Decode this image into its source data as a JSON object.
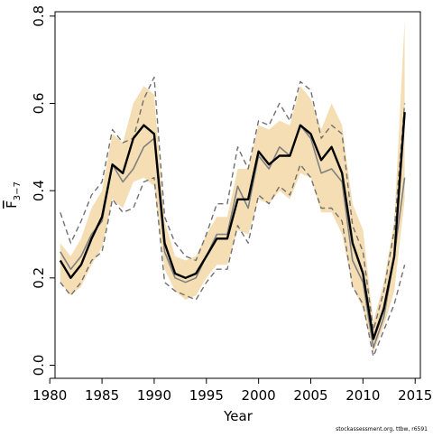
{
  "chart_data": {
    "type": "line",
    "title": "",
    "xlabel": "Year",
    "ylabel": {
      "main": "F",
      "sub": "3−7"
    },
    "xlim": [
      1980.5,
      2015.5
    ],
    "ylim": [
      -0.03,
      0.81
    ],
    "xticks": [
      1980,
      1985,
      1990,
      1995,
      2000,
      2005,
      2010,
      2015
    ],
    "yticks": [
      0.0,
      0.2,
      0.4,
      0.6,
      0.8
    ],
    "ytick_labels": [
      "0.0",
      "0.2",
      "0.4",
      "0.6",
      "0.8"
    ],
    "grid": false,
    "legend": "none",
    "colors": {
      "band": "#f5deb3",
      "current": "#000000",
      "previous": "#808080",
      "previous_ci": "#707070"
    },
    "x": [
      1981,
      1982,
      1983,
      1984,
      1985,
      1986,
      1987,
      1988,
      1989,
      1990,
      1991,
      1992,
      1993,
      1994,
      1995,
      1996,
      1997,
      1998,
      1999,
      2000,
      2001,
      2002,
      2003,
      2004,
      2005,
      2006,
      2007,
      2008,
      2009,
      2010,
      2011,
      2012,
      2013,
      2014
    ],
    "series": [
      {
        "role": "band",
        "lower": [
          0.19,
          0.16,
          0.18,
          0.23,
          0.27,
          0.38,
          0.36,
          0.42,
          0.43,
          0.41,
          0.22,
          0.17,
          0.15,
          0.16,
          0.2,
          0.23,
          0.23,
          0.31,
          0.3,
          0.38,
          0.37,
          0.4,
          0.38,
          0.44,
          0.43,
          0.35,
          0.35,
          0.3,
          0.18,
          0.13,
          0.03,
          0.09,
          0.17,
          0.38
        ],
        "upper": [
          0.28,
          0.25,
          0.29,
          0.36,
          0.4,
          0.53,
          0.51,
          0.6,
          0.64,
          0.62,
          0.33,
          0.25,
          0.24,
          0.25,
          0.3,
          0.34,
          0.34,
          0.45,
          0.45,
          0.55,
          0.54,
          0.56,
          0.55,
          0.64,
          0.61,
          0.54,
          0.6,
          0.55,
          0.37,
          0.31,
          0.1,
          0.19,
          0.33,
          0.79
        ]
      },
      {
        "role": "current",
        "values": [
          0.24,
          0.2,
          0.23,
          0.29,
          0.34,
          0.46,
          0.44,
          0.52,
          0.55,
          0.53,
          0.28,
          0.21,
          0.2,
          0.21,
          0.25,
          0.29,
          0.29,
          0.38,
          0.38,
          0.49,
          0.46,
          0.48,
          0.48,
          0.55,
          0.53,
          0.47,
          0.5,
          0.44,
          0.28,
          0.21,
          0.06,
          0.13,
          0.25,
          0.58
        ]
      },
      {
        "role": "previous",
        "values": [
          0.26,
          0.22,
          0.25,
          0.3,
          0.33,
          0.46,
          0.42,
          0.45,
          0.5,
          0.52,
          0.26,
          0.2,
          0.19,
          0.2,
          0.25,
          0.3,
          0.3,
          0.41,
          0.36,
          0.48,
          0.45,
          0.5,
          0.48,
          0.55,
          0.52,
          0.44,
          0.45,
          0.42,
          0.24,
          0.19,
          0.04,
          0.11,
          0.25,
          0.43
        ]
      },
      {
        "role": "previous_ci_upper",
        "values": [
          0.35,
          0.28,
          0.33,
          0.39,
          0.42,
          0.54,
          0.51,
          0.52,
          0.61,
          0.66,
          0.34,
          0.28,
          0.25,
          0.24,
          0.3,
          0.37,
          0.37,
          0.5,
          0.45,
          0.56,
          0.55,
          0.6,
          0.56,
          0.65,
          0.63,
          0.52,
          0.55,
          0.53,
          0.32,
          0.26,
          0.08,
          0.17,
          0.31,
          0.6
        ]
      },
      {
        "role": "previous_ci_lower",
        "values": [
          0.19,
          0.16,
          0.19,
          0.24,
          0.26,
          0.38,
          0.35,
          0.36,
          0.42,
          0.43,
          0.19,
          0.17,
          0.16,
          0.15,
          0.19,
          0.22,
          0.22,
          0.32,
          0.28,
          0.39,
          0.37,
          0.41,
          0.39,
          0.46,
          0.43,
          0.36,
          0.36,
          0.33,
          0.18,
          0.14,
          0.02,
          0.08,
          0.14,
          0.23
        ]
      }
    ],
    "annotation": "stockassessment.org, ttbw, r6591"
  }
}
